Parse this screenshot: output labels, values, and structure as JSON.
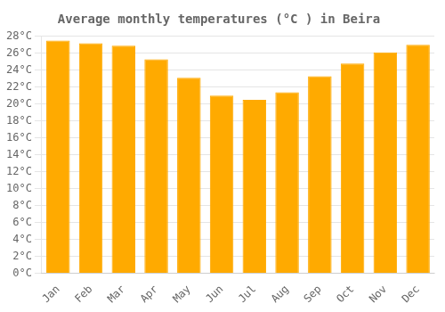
{
  "chart_data": {
    "type": "bar",
    "title": "Average monthly temperatures (°C ) in Beira",
    "categories": [
      "Jan",
      "Feb",
      "Mar",
      "Apr",
      "May",
      "Jun",
      "Jul",
      "Aug",
      "Sep",
      "Oct",
      "Nov",
      "Dec"
    ],
    "values": [
      27.5,
      27.2,
      26.9,
      25.3,
      23.1,
      21.0,
      20.5,
      21.4,
      23.3,
      24.8,
      26.1,
      27.0
    ],
    "color": "#FFAA00",
    "ylim": [
      0,
      28
    ],
    "yticks": [
      {
        "value": 0,
        "label": "0°C"
      },
      {
        "value": 2,
        "label": "2°C"
      },
      {
        "value": 4,
        "label": "4°C"
      },
      {
        "value": 6,
        "label": "6°C"
      },
      {
        "value": 8,
        "label": "8°C"
      },
      {
        "value": 10,
        "label": "10°C"
      },
      {
        "value": 12,
        "label": "12°C"
      },
      {
        "value": 14,
        "label": "14°C"
      },
      {
        "value": 16,
        "label": "16°C"
      },
      {
        "value": 18,
        "label": "18°C"
      },
      {
        "value": 20,
        "label": "20°C"
      },
      {
        "value": 22,
        "label": "22°C"
      },
      {
        "value": 24,
        "label": "24°C"
      },
      {
        "value": 26,
        "label": "26°C"
      },
      {
        "value": 28,
        "label": "28°C"
      }
    ],
    "grid": true
  }
}
